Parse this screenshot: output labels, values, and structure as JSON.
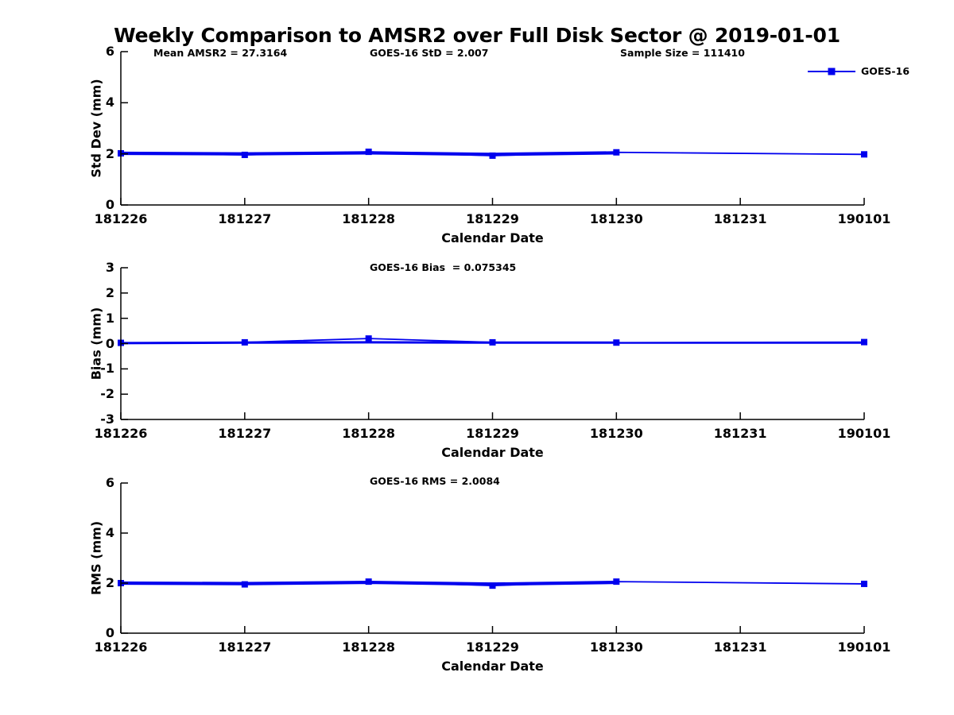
{
  "chart_data": {
    "type": "line",
    "title": "Weekly Comparison to AMSR2 over Full Disk Sector @ 2019-01-01",
    "xlabel": "Calendar Date",
    "categories": [
      "181226",
      "181227",
      "181228",
      "181229",
      "181230",
      "181231",
      "190101"
    ],
    "grid": false,
    "legend": {
      "label": "GOES-16",
      "color": "#0000ee",
      "marker": "square",
      "position": "top-right"
    },
    "subplots": [
      {
        "id": "std-dev",
        "ylabel": "Std Dev (mm)",
        "ylim": [
          0,
          6
        ],
        "yticks": [
          0,
          2,
          4,
          6
        ],
        "annotations": [
          "Mean AMSR2 = 27.3164",
          "GOES-16 StD = 2.007",
          "Sample Size = 111410"
        ],
        "series": {
          "name": "GOES-16",
          "x": [
            "181226",
            "181227",
            "181228",
            "181229",
            "181230",
            "190101"
          ],
          "y": [
            2.02,
            1.96,
            2.08,
            1.93,
            2.06,
            1.98
          ]
        },
        "band": {
          "x": [
            "181226",
            "181227",
            "181228",
            "181229",
            "181230"
          ],
          "y": [
            2.02,
            2.0,
            2.04,
            1.98,
            2.04
          ]
        }
      },
      {
        "id": "bias",
        "ylabel": "Bias (mm)",
        "ylim": [
          -3,
          3
        ],
        "yticks": [
          -3,
          -2,
          -1,
          0,
          1,
          2,
          3
        ],
        "annotations": [
          "GOES-16 Bias  = 0.075345"
        ],
        "series": {
          "name": "GOES-16",
          "x": [
            "181226",
            "181227",
            "181228",
            "181229",
            "181230",
            "190101"
          ],
          "y": [
            0.03,
            0.05,
            0.2,
            0.05,
            0.04,
            0.06
          ]
        },
        "band": {
          "x": [
            "181226",
            "181227",
            "181228",
            "181229",
            "181230"
          ],
          "y": [
            0.02,
            0.04,
            0.05,
            0.04,
            0.04
          ]
        },
        "band_tail": {
          "x": [
            "181230",
            "190101"
          ],
          "y": [
            0.015,
            0.015
          ]
        }
      },
      {
        "id": "rms",
        "ylabel": "RMS (mm)",
        "ylim": [
          0,
          6
        ],
        "yticks": [
          0,
          2,
          4,
          6
        ],
        "annotations": [
          "GOES-16 RMS = 2.0084"
        ],
        "series": {
          "name": "GOES-16",
          "x": [
            "181226",
            "181227",
            "181228",
            "181229",
            "181230",
            "190101"
          ],
          "y": [
            2.0,
            1.95,
            2.06,
            1.9,
            2.06,
            1.97
          ]
        },
        "band": {
          "x": [
            "181226",
            "181227",
            "181228",
            "181229",
            "181230"
          ],
          "y": [
            2.0,
            1.98,
            2.03,
            1.96,
            2.03
          ]
        }
      }
    ],
    "colors": {
      "line": "#0000ee",
      "axis": "#000000",
      "text": "#000000",
      "background": "#ffffff"
    }
  }
}
